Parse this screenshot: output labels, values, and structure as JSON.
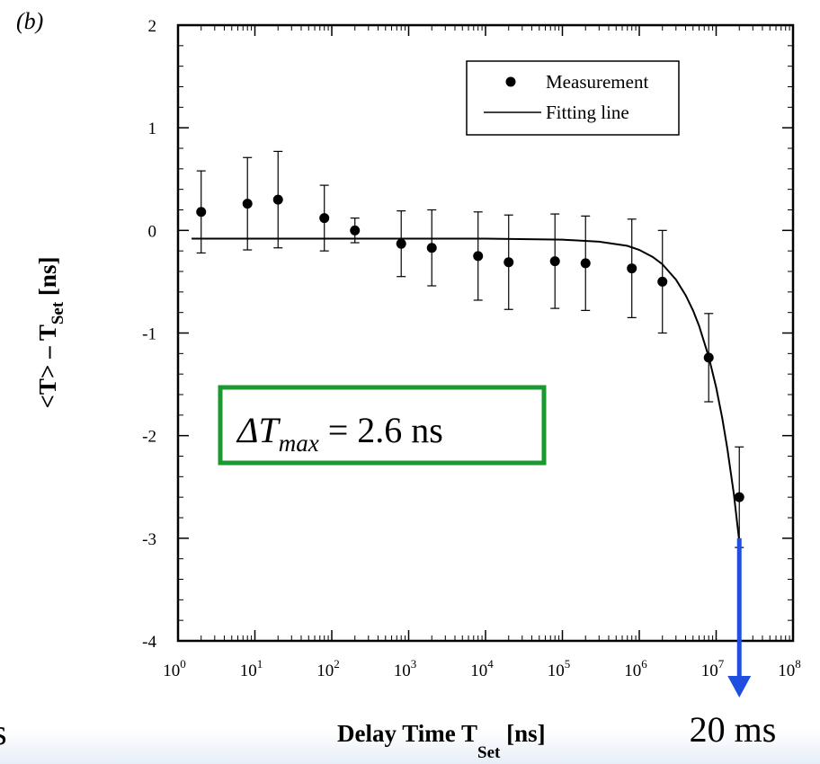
{
  "chart_data": {
    "type": "scatter",
    "panel_label": "(b)",
    "xlabel": {
      "main": "Delay Time T",
      "sub": "Set",
      "unit": " [ns]"
    },
    "ylabel": {
      "main": "<T> – T",
      "sub": "Set",
      "unit": " [ns]"
    },
    "x_scale": "log",
    "xlim": [
      1,
      100000000
    ],
    "ylim": [
      -4,
      2
    ],
    "x_ticks": [
      {
        "base": "10",
        "exp": "0",
        "value": 1
      },
      {
        "base": "10",
        "exp": "1",
        "value": 10
      },
      {
        "base": "10",
        "exp": "2",
        "value": 100
      },
      {
        "base": "10",
        "exp": "3",
        "value": 1000
      },
      {
        "base": "10",
        "exp": "4",
        "value": 10000
      },
      {
        "base": "10",
        "exp": "5",
        "value": 100000
      },
      {
        "base": "10",
        "exp": "6",
        "value": 1000000
      },
      {
        "base": "10",
        "exp": "7",
        "value": 10000000
      },
      {
        "base": "10",
        "exp": "8",
        "value": 100000000
      }
    ],
    "y_ticks": [
      {
        "label": "2",
        "value": 2
      },
      {
        "label": "1",
        "value": 1
      },
      {
        "label": "0",
        "value": 0
      },
      {
        "label": "-1",
        "value": -1
      },
      {
        "label": "-2",
        "value": -2
      },
      {
        "label": "-3",
        "value": -3
      },
      {
        "label": "-4",
        "value": -4
      }
    ],
    "legend": {
      "position": "top-right",
      "entries": [
        {
          "label": "Measurement",
          "marker": "point"
        },
        {
          "label": "Fitting line",
          "marker": "line"
        }
      ]
    },
    "series": [
      {
        "name": "Measurement",
        "kind": "points_with_errorbars",
        "points": [
          {
            "x": 2,
            "y": 0.18,
            "err": 0.4
          },
          {
            "x": 8,
            "y": 0.26,
            "err": 0.45
          },
          {
            "x": 20,
            "y": 0.3,
            "err": 0.47
          },
          {
            "x": 80,
            "y": 0.12,
            "err": 0.32
          },
          {
            "x": 200,
            "y": 0.0,
            "err": 0.12
          },
          {
            "x": 800,
            "y": -0.13,
            "err": 0.32
          },
          {
            "x": 2000,
            "y": -0.17,
            "err": 0.37
          },
          {
            "x": 8000,
            "y": -0.25,
            "err": 0.43
          },
          {
            "x": 20000,
            "y": -0.31,
            "err": 0.46
          },
          {
            "x": 80000,
            "y": -0.3,
            "err": 0.46
          },
          {
            "x": 200000,
            "y": -0.32,
            "err": 0.46
          },
          {
            "x": 800000,
            "y": -0.37,
            "err": 0.48
          },
          {
            "x": 2000000,
            "y": -0.5,
            "err": 0.5
          },
          {
            "x": 8000000,
            "y": -1.24,
            "err": 0.43
          },
          {
            "x": 20000000,
            "y": -2.6,
            "err": 0.49
          }
        ]
      },
      {
        "name": "Fitting line",
        "kind": "line",
        "x": [
          1.5,
          10,
          100,
          1000,
          10000,
          100000,
          300000,
          700000,
          1000000,
          1500000,
          2000000,
          3000000,
          4000000,
          5000000,
          6000000,
          8000000,
          10000000,
          12000000,
          14000000,
          17000000,
          20000000
        ],
        "y": [
          -0.08,
          -0.08,
          -0.08,
          -0.08,
          -0.08,
          -0.09,
          -0.11,
          -0.15,
          -0.19,
          -0.26,
          -0.33,
          -0.48,
          -0.63,
          -0.78,
          -0.93,
          -1.23,
          -1.53,
          -1.83,
          -2.13,
          -2.57,
          -3.03
        ]
      }
    ],
    "annotations": {
      "box_text": {
        "delta": "ΔT",
        "sub": "max",
        "rest": " = 2.6 ns",
        "color": "#1a9a2e"
      },
      "arrow": {
        "x": 20000000,
        "y_from": -3.0,
        "label": "20 ms",
        "color": "#1f4fe0"
      }
    },
    "cut_text": "s",
    "frame_color": "#000000"
  }
}
